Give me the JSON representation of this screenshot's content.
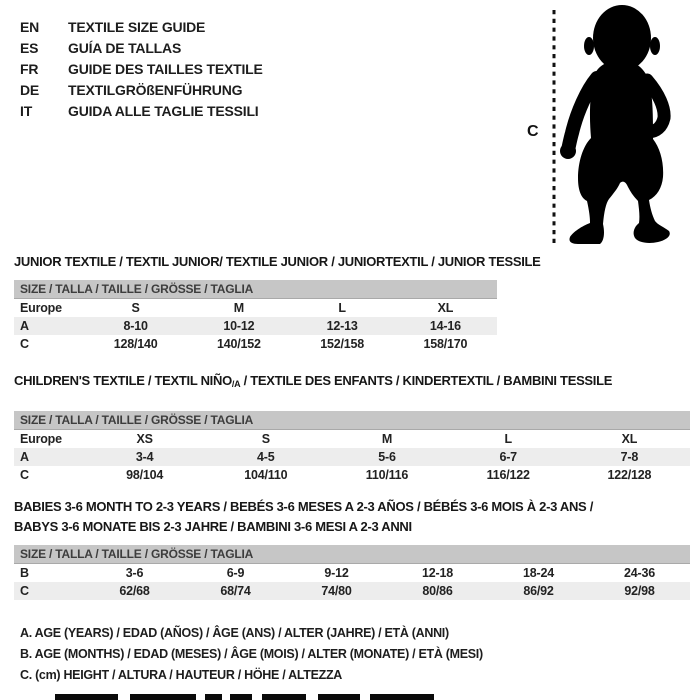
{
  "header": {
    "languages": [
      {
        "code": "EN",
        "label": "TEXTILE SIZE GUIDE"
      },
      {
        "code": "ES",
        "label": "GUÍA DE TALLAS"
      },
      {
        "code": "FR",
        "label": "GUIDE DES TAILLES TEXTILE"
      },
      {
        "code": "DE",
        "label": "TEXTILGRÖßENFÜHRUNG"
      },
      {
        "code": "IT",
        "label": "GUIDA ALLE TAGLIE TESSILI"
      }
    ]
  },
  "figure": {
    "measure_label": "C",
    "icon": "toddler-silhouette-icon"
  },
  "tables": [
    {
      "title": "JUNIOR TEXTILE / TEXTIL JUNIOR/ TEXTILE JUNIOR / JUNIORTEXTIL / JUNIOR TESSILE",
      "size_header": "SIZE / TALLA / TAILLE / GRÖSSE / TAGLIA",
      "rows": [
        {
          "label": "Europe",
          "values": [
            "S",
            "M",
            "L",
            "XL"
          ]
        },
        {
          "label": "A",
          "values": [
            "8-10",
            "10-12",
            "12-13",
            "14-16"
          ]
        },
        {
          "label": "C",
          "values": [
            "128/140",
            "140/152",
            "152/158",
            "158/170"
          ]
        }
      ]
    },
    {
      "title_before": "CHILDREN'S TEXTILE / TEXTIL NIÑO",
      "title_sub": "/A",
      "title_after": " / TEXTILE DES ENFANTS / KINDERTEXTIL / BAMBINI TESSILE",
      "size_header": "SIZE / TALLA / TAILLE / GRÖSSE / TAGLIA",
      "rows": [
        {
          "label": "Europe",
          "values": [
            "XS",
            "S",
            "M",
            "L",
            "XL"
          ]
        },
        {
          "label": "A",
          "values": [
            "3-4",
            "4-5",
            "5-6",
            "6-7",
            "7-8"
          ]
        },
        {
          "label": "C",
          "values": [
            "98/104",
            "104/110",
            "110/116",
            "116/122",
            "122/128"
          ]
        }
      ]
    },
    {
      "title_line1": "BABIES 3-6 MONTH TO 2-3 YEARS / BEBÉS 3-6 MESES A 2-3 AÑOS / BÉBÉS 3-6 MOIS À 2-3 ANS /",
      "title_line2": "BABYS 3-6 MONATE BIS 2-3 JAHRE / BAMBINI 3-6 MESI A 2-3 ANNI",
      "size_header": "SIZE / TALLA / TAILLE / GRÖSSE / TAGLIA",
      "rows": [
        {
          "label": "B",
          "values": [
            "3-6",
            "6-9",
            "9-12",
            "12-18",
            "18-24",
            "24-36"
          ]
        },
        {
          "label": "C",
          "values": [
            "62/68",
            "68/74",
            "74/80",
            "80/86",
            "86/92",
            "92/98"
          ]
        }
      ]
    }
  ],
  "footnotes": [
    "A. AGE (YEARS) / EDAD (AÑOS) / ÂGE (ANS) / ALTER (JAHRE) / ETÀ (ANNI)",
    "B. AGE (MONTHS) / EDAD (MESES) / ÂGE (MOIS) / ALTER (MONATE) / ETÀ (MESI)",
    "C. (cm) HEIGHT / ALTURA / HAUTEUR / HÖHE / ALTEZZA"
  ],
  "colors": {
    "text": "#1d1d1d",
    "table_header_bg": "#c6c6c6",
    "row_alt_bg": "#ededed",
    "silhouette": "#000000"
  }
}
